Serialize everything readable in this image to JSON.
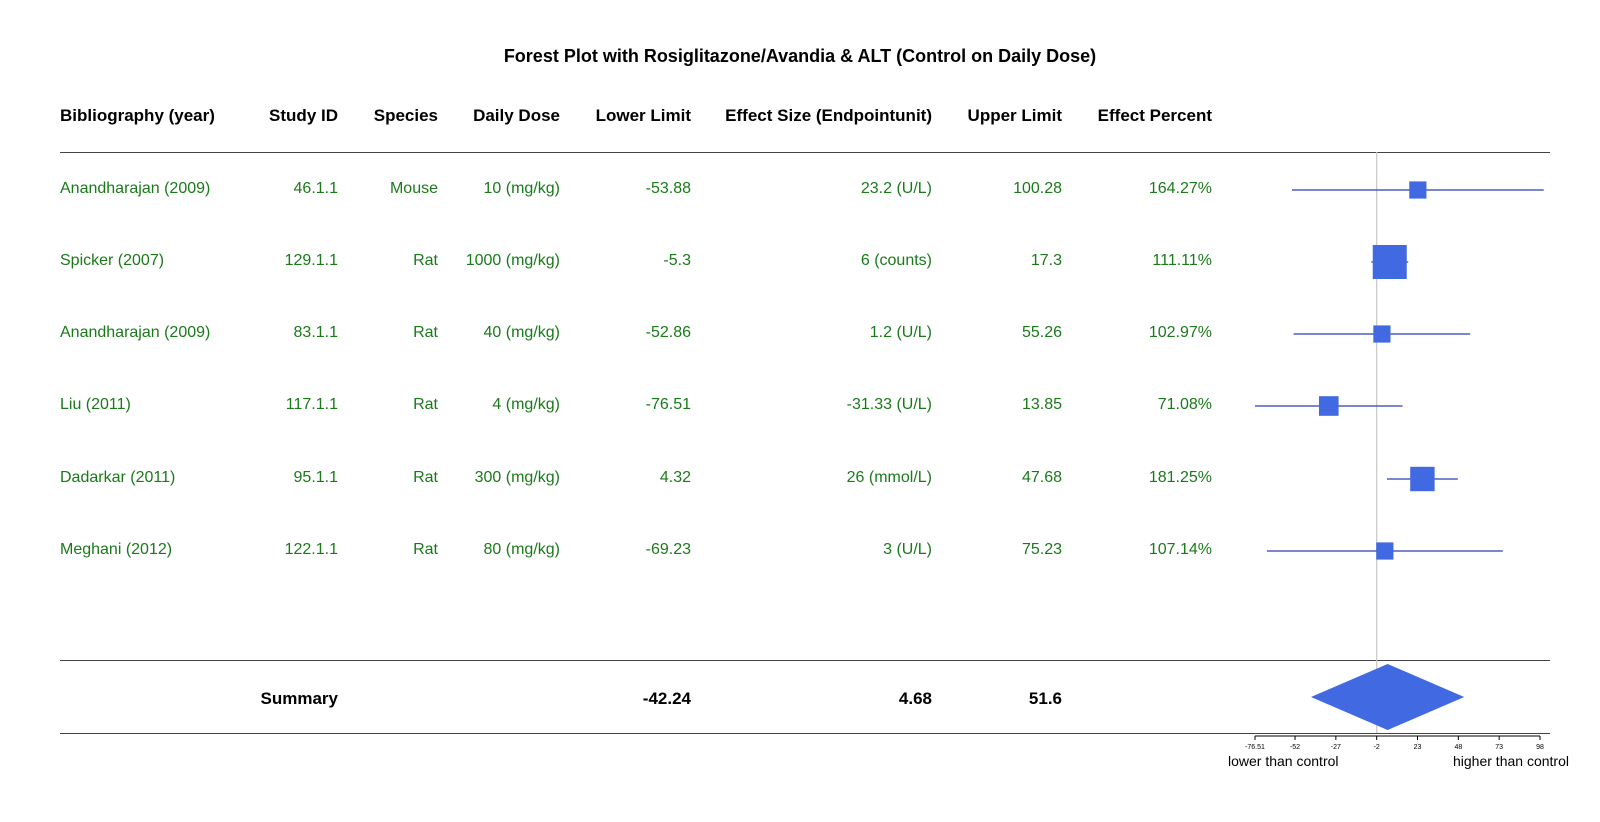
{
  "chart_data": {
    "type": "forest",
    "title": "Forest Plot with Rosiglitazone/Avandia & ALT (Control on Daily Dose)",
    "columns": [
      "Bibliography (year)",
      "Study ID",
      "Species",
      "Daily Dose",
      "Lower Limit",
      "Effect Size (Endpointunit)",
      "Upper Limit",
      "Effect Percent"
    ],
    "rows": [
      {
        "bib": "Anandharajan (2009)",
        "study_id": "46.1.1",
        "species": "Mouse",
        "dose": "10 (mg/kg)",
        "lower": "-53.88",
        "effect": "23.2 (U/L)",
        "upper": "100.28",
        "percent": "164.27%",
        "lo": -53.88,
        "est": 23.2,
        "hi": 100.28,
        "weight": 0.3
      },
      {
        "bib": "Spicker (2007)",
        "study_id": "129.1.1",
        "species": "Rat",
        "dose": "1000 (mg/kg)",
        "lower": "-5.3",
        "effect": "6 (counts)",
        "upper": "17.3",
        "percent": "111.11%",
        "lo": -5.3,
        "est": 6,
        "hi": 17.3,
        "weight": 1.0
      },
      {
        "bib": "Anandharajan (2009)",
        "study_id": "83.1.1",
        "species": "Rat",
        "dose": "40 (mg/kg)",
        "lower": "-52.86",
        "effect": "1.2 (U/L)",
        "upper": "55.26",
        "percent": "102.97%",
        "lo": -52.86,
        "est": 1.2,
        "hi": 55.26,
        "weight": 0.3
      },
      {
        "bib": "Liu (2011)",
        "study_id": "117.1.1",
        "species": "Rat",
        "dose": "4 (mg/kg)",
        "lower": "-76.51",
        "effect": "-31.33 (U/L)",
        "upper": "13.85",
        "percent": "71.08%",
        "lo": -76.51,
        "est": -31.33,
        "hi": 13.85,
        "weight": 0.4
      },
      {
        "bib": "Dadarkar (2011)",
        "study_id": "95.1.1",
        "species": "Rat",
        "dose": "300 (mg/kg)",
        "lower": "4.32",
        "effect": "26 (mmol/L)",
        "upper": "47.68",
        "percent": "181.25%",
        "lo": 4.32,
        "est": 26,
        "hi": 47.68,
        "weight": 0.6
      },
      {
        "bib": "Meghani (2012)",
        "study_id": "122.1.1",
        "species": "Rat",
        "dose": "80 (mg/kg)",
        "lower": "-69.23",
        "effect": "3 (U/L)",
        "upper": "75.23",
        "percent": "107.14%",
        "lo": -69.23,
        "est": 3,
        "hi": 75.23,
        "weight": 0.3
      }
    ],
    "summary": {
      "label": "Summary",
      "lower": "-42.24",
      "effect": "4.68",
      "upper": "51.6",
      "lo": -42.24,
      "est": 4.68,
      "hi": 51.6
    },
    "x_ticks": [
      "-76.51",
      "-52",
      "-27",
      "-2",
      "23",
      "48",
      "73",
      "98"
    ],
    "xlim": [
      -76.51,
      98
    ],
    "reference_line": -2,
    "x_label_left": "lower than control",
    "x_label_right": "higher than control",
    "colors": {
      "marker": "#4169e1",
      "line": "#2a3fb0",
      "text": "#1a7a1a",
      "reference": "#c8c8c8"
    }
  }
}
